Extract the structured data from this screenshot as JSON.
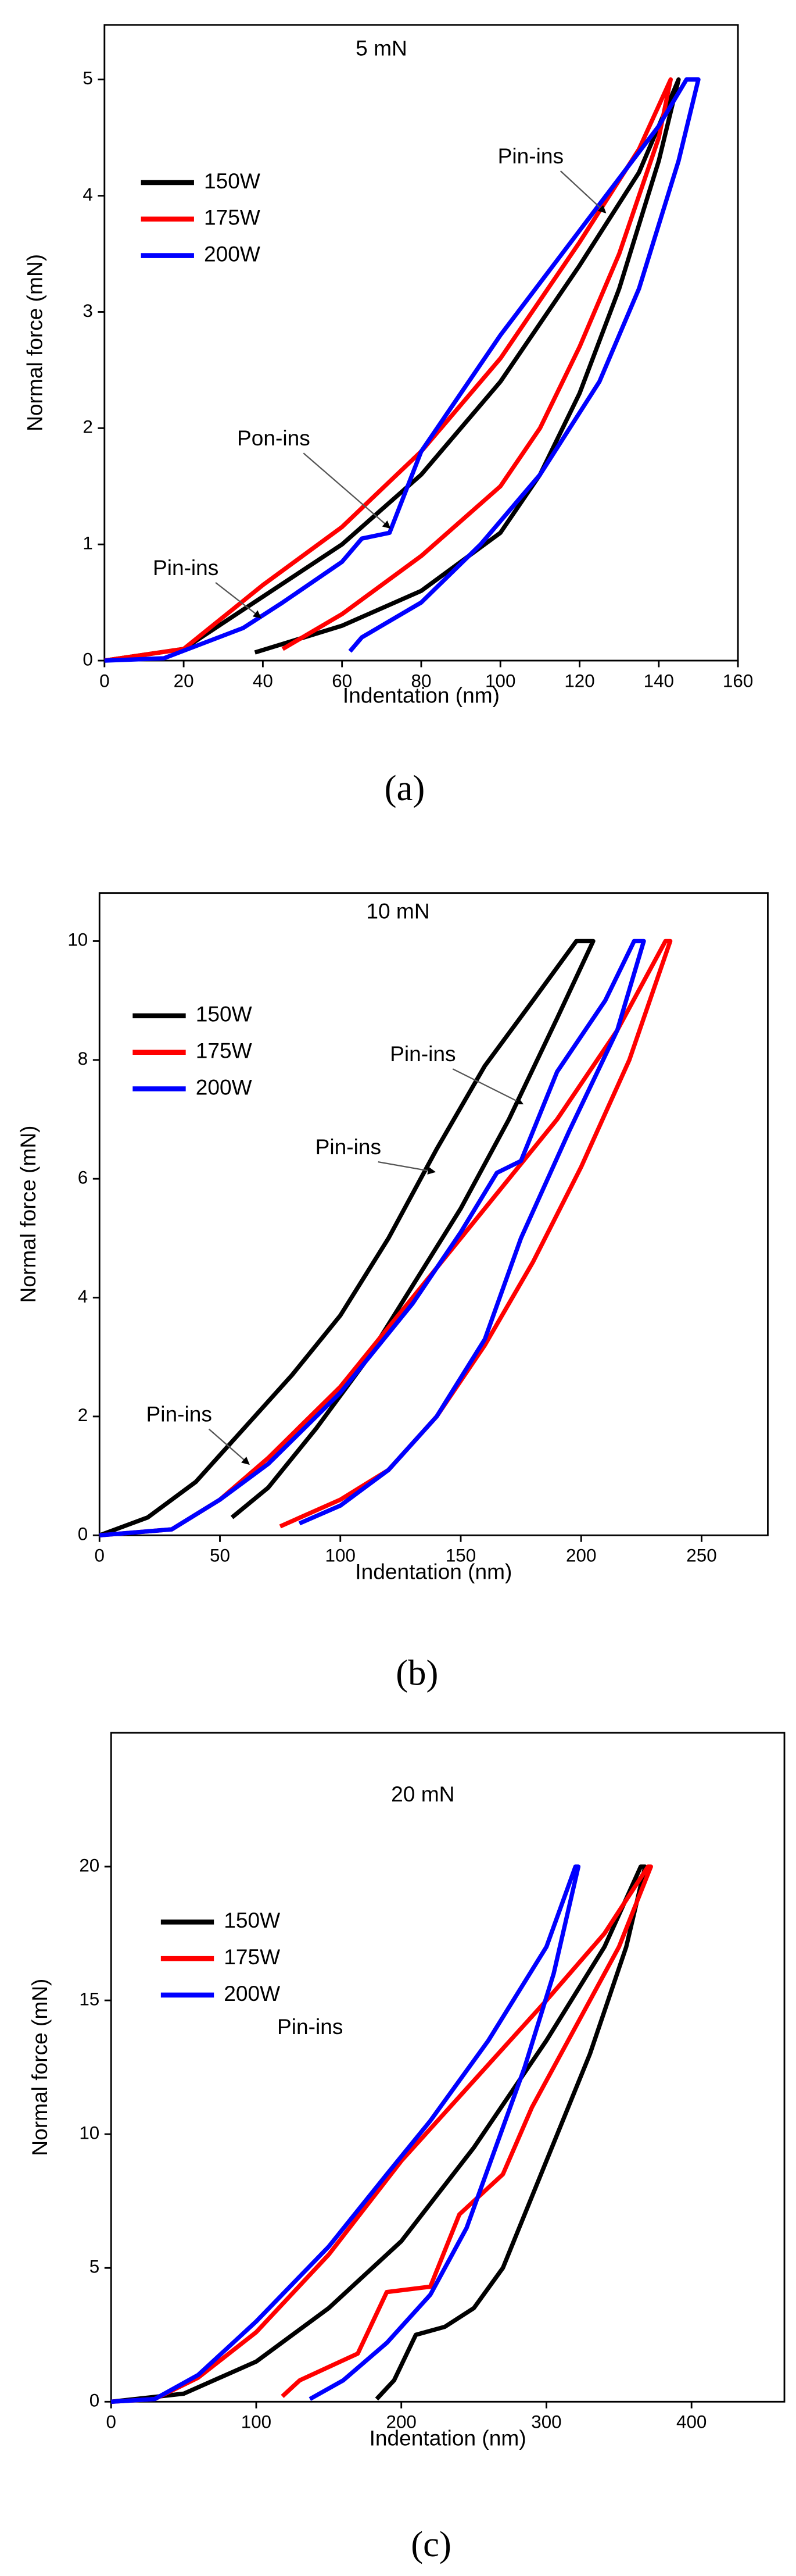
{
  "chart_data": [
    {
      "type": "line",
      "title": "5 mN",
      "caption": "(a)",
      "x_label": "Indentation (nm)",
      "y_label": "Normal force (mN)",
      "xlim": [
        0,
        160
      ],
      "ylim": [
        0,
        5.47
      ],
      "xticks": [
        0,
        20,
        40,
        60,
        80,
        100,
        120,
        140,
        160
      ],
      "yticks": [
        0,
        1,
        2,
        3,
        4,
        5
      ],
      "annotations": [
        "Pin-ins",
        "Pon-ins",
        "Pin-ins"
      ],
      "series": [
        {
          "name": "150W",
          "color": "#000000",
          "x": [
            0,
            20,
            40,
            60,
            80,
            100,
            120,
            135,
            145,
            140,
            130,
            120,
            110,
            100,
            80,
            60,
            38
          ],
          "y": [
            0,
            0.1,
            0.55,
            1.0,
            1.6,
            2.4,
            3.4,
            4.2,
            5,
            4.3,
            3.2,
            2.3,
            1.6,
            1.1,
            0.6,
            0.3,
            0.07
          ]
        },
        {
          "name": "175W",
          "color": "#ff0000",
          "x": [
            0,
            20,
            40,
            60,
            80,
            100,
            120,
            135,
            143,
            140,
            130,
            120,
            110,
            100,
            80,
            60,
            45
          ],
          "y": [
            0,
            0.1,
            0.65,
            1.15,
            1.8,
            2.6,
            3.6,
            4.4,
            5,
            4.5,
            3.5,
            2.7,
            2.0,
            1.5,
            0.9,
            0.4,
            0.1
          ]
        },
        {
          "name": "200W",
          "color": "#0000ff",
          "x": [
            0,
            15,
            25,
            35,
            45,
            60,
            65,
            72,
            80,
            90,
            100,
            120,
            140,
            147,
            150,
            145,
            135,
            125,
            110,
            95,
            80,
            70,
            65,
            62
          ],
          "y": [
            0,
            0.02,
            0.15,
            0.28,
            0.5,
            0.85,
            1.05,
            1.1,
            1.8,
            2.3,
            2.8,
            3.7,
            4.6,
            5,
            5,
            4.3,
            3.2,
            2.4,
            1.6,
            1.0,
            0.5,
            0.3,
            0.2,
            0.08
          ]
        }
      ]
    },
    {
      "type": "line",
      "title": "10 mN",
      "caption": "(b)",
      "x_label": "Indentation (nm)",
      "y_label": "Normal force (mN)",
      "xlim": [
        0,
        277.5
      ],
      "ylim": [
        0,
        10.81
      ],
      "xticks": [
        0,
        50,
        100,
        150,
        200,
        250
      ],
      "yticks": [
        0,
        2,
        4,
        6,
        8,
        10
      ],
      "annotations": [
        "Pin-ins",
        "Pin-ins",
        "Pin-ins"
      ],
      "series": [
        {
          "name": "150W",
          "color": "#000000",
          "x": [
            0,
            20,
            40,
            60,
            80,
            100,
            120,
            140,
            160,
            180,
            198,
            205,
            190,
            170,
            150,
            130,
            110,
            90,
            70,
            55
          ],
          "y": [
            0,
            0.3,
            0.9,
            1.8,
            2.7,
            3.7,
            5.0,
            6.5,
            7.9,
            9.0,
            10,
            10,
            8.7,
            7.0,
            5.5,
            4.2,
            2.9,
            1.8,
            0.8,
            0.3
          ]
        },
        {
          "name": "175W",
          "color": "#ff0000",
          "x": [
            0,
            30,
            50,
            70,
            100,
            130,
            160,
            190,
            215,
            235,
            237,
            220,
            200,
            180,
            160,
            140,
            120,
            100,
            75
          ],
          "y": [
            0,
            0.1,
            0.6,
            1.3,
            2.5,
            4.0,
            5.5,
            7.0,
            8.5,
            10,
            10,
            8.0,
            6.2,
            4.6,
            3.2,
            2.0,
            1.1,
            0.6,
            0.15
          ]
        },
        {
          "name": "200W",
          "color": "#0000ff",
          "x": [
            0,
            30,
            50,
            70,
            100,
            130,
            150,
            165,
            175,
            190,
            210,
            222,
            226,
            215,
            195,
            175,
            160,
            140,
            120,
            100,
            83
          ],
          "y": [
            0,
            0.1,
            0.6,
            1.2,
            2.4,
            3.9,
            5.1,
            6.1,
            6.3,
            7.8,
            9.0,
            10,
            10,
            8.5,
            6.8,
            5.0,
            3.3,
            2.0,
            1.1,
            0.5,
            0.2
          ]
        }
      ]
    },
    {
      "type": "line",
      "title": "20 mN",
      "caption": "(c)",
      "x_label": "Indentation (nm)",
      "y_label": "Normal force (mN)",
      "xlim": [
        0,
        464
      ],
      "ylim": [
        0,
        25
      ],
      "xticks": [
        0,
        100,
        200,
        300,
        400
      ],
      "yticks": [
        0,
        5,
        10,
        15,
        20
      ],
      "annotations": [
        "Pin-ins"
      ],
      "series": [
        {
          "name": "150W",
          "color": "#000000",
          "x": [
            0,
            50,
            100,
            150,
            200,
            250,
            300,
            340,
            365,
            368,
            355,
            330,
            300,
            270,
            250,
            230,
            210,
            195,
            183
          ],
          "y": [
            0,
            0.3,
            1.5,
            3.5,
            6.0,
            9.5,
            13.5,
            17,
            20,
            20,
            17,
            13,
            9,
            5,
            3.5,
            2.8,
            2.5,
            0.8,
            0.1
          ]
        },
        {
          "name": "175W",
          "color": "#ff0000",
          "x": [
            0,
            30,
            60,
            100,
            150,
            200,
            250,
            300,
            340,
            370,
            372,
            350,
            320,
            290,
            270,
            240,
            220,
            190,
            170,
            150,
            130,
            118
          ],
          "y": [
            0,
            0.1,
            0.9,
            2.6,
            5.5,
            9.0,
            12.0,
            15.0,
            17.5,
            20,
            20,
            17,
            14,
            11,
            8.5,
            7,
            4.3,
            4.1,
            1.8,
            1.3,
            0.8,
            0.2
          ]
        },
        {
          "name": "200W",
          "color": "#0000ff",
          "x": [
            0,
            30,
            60,
            100,
            150,
            190,
            220,
            260,
            300,
            320,
            322,
            305,
            285,
            265,
            245,
            220,
            190,
            160,
            137
          ],
          "y": [
            0,
            0.1,
            1.0,
            3.0,
            5.8,
            8.5,
            10.5,
            13.5,
            17.0,
            20,
            20,
            16,
            12.5,
            9.5,
            6.5,
            4.0,
            2.2,
            0.8,
            0.1
          ]
        }
      ]
    }
  ]
}
